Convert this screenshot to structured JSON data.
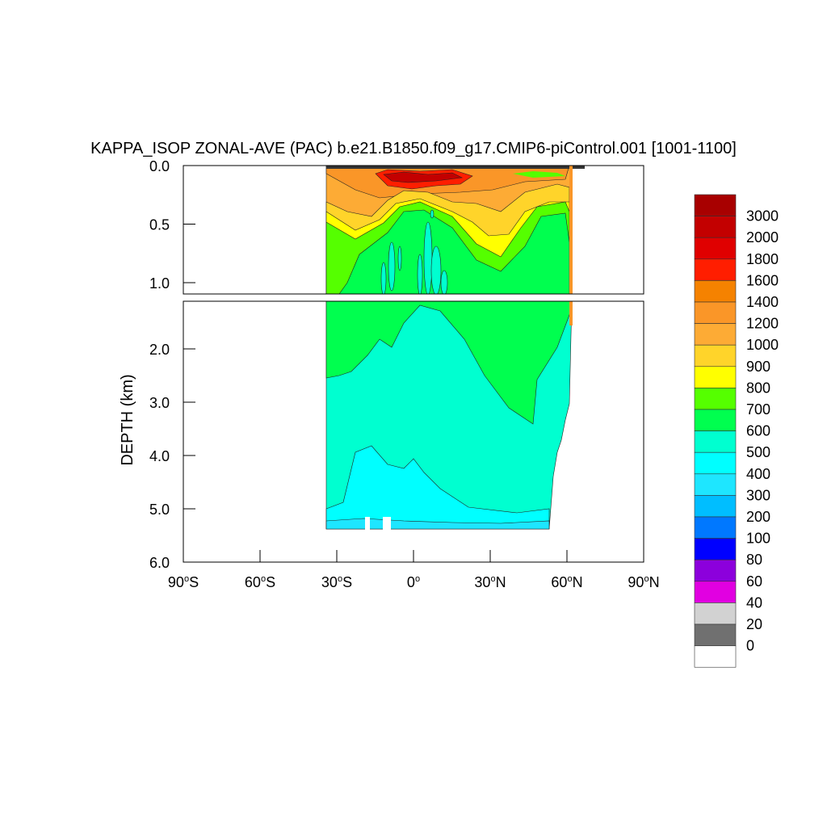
{
  "chart_data": {
    "type": "heatmap",
    "subtype": "filled-contour",
    "title": "KAPPA_ISOP ZONAL-AVE (PAC) b.e21.B1850.f09_g17.CMIP6-piControl.001 [1001-1100]",
    "xlabel": "",
    "ylabel": "DEPTH (km)",
    "xlim": [
      -90,
      90
    ],
    "x_ticks": [
      {
        "value": -90,
        "label": "90",
        "suffix": "S"
      },
      {
        "value": -60,
        "label": "60",
        "suffix": "S"
      },
      {
        "value": -30,
        "label": "30",
        "suffix": "S"
      },
      {
        "value": 0,
        "label": "0",
        "suffix": ""
      },
      {
        "value": 30,
        "label": "30",
        "suffix": "N"
      },
      {
        "value": 60,
        "label": "60",
        "suffix": "N"
      },
      {
        "value": 90,
        "label": "90",
        "suffix": "N"
      }
    ],
    "upper_panel": {
      "ylim": [
        0.0,
        1.1
      ],
      "y_ticks": [
        "0.0",
        "0.5",
        "1.0"
      ],
      "y_values": [
        0.0,
        0.5,
        1.0
      ]
    },
    "lower_panel": {
      "ylim": [
        1.1,
        6.0
      ],
      "y_ticks": [
        "2.0",
        "3.0",
        "4.0",
        "5.0",
        "6.0"
      ],
      "y_values": [
        2.0,
        3.0,
        4.0,
        5.0,
        6.0
      ]
    },
    "data_extent": {
      "lat": [
        -34,
        62
      ],
      "max_depth_km": 5.4
    },
    "colorbar": {
      "labels": [
        "3000",
        "2000",
        "1800",
        "1600",
        "1400",
        "1200",
        "1000",
        "900",
        "800",
        "700",
        "600",
        "500",
        "400",
        "300",
        "200",
        "100",
        "80",
        "60",
        "40",
        "20",
        "0"
      ],
      "colors": [
        "#a80000",
        "#c30000",
        "#e00000",
        "#ff1e00",
        "#f58200",
        "#fa9628",
        "#fdab35",
        "#ffd42a",
        "#ffff00",
        "#55ff00",
        "#00ff4f",
        "#00ffd0",
        "#00ffff",
        "#1ee6ff",
        "#00beff",
        "#0078ff",
        "#0000ff",
        "#8c00dc",
        "#e100e1",
        "#d2d2d2",
        "#707070",
        "#ffffff"
      ]
    },
    "grid": false
  }
}
